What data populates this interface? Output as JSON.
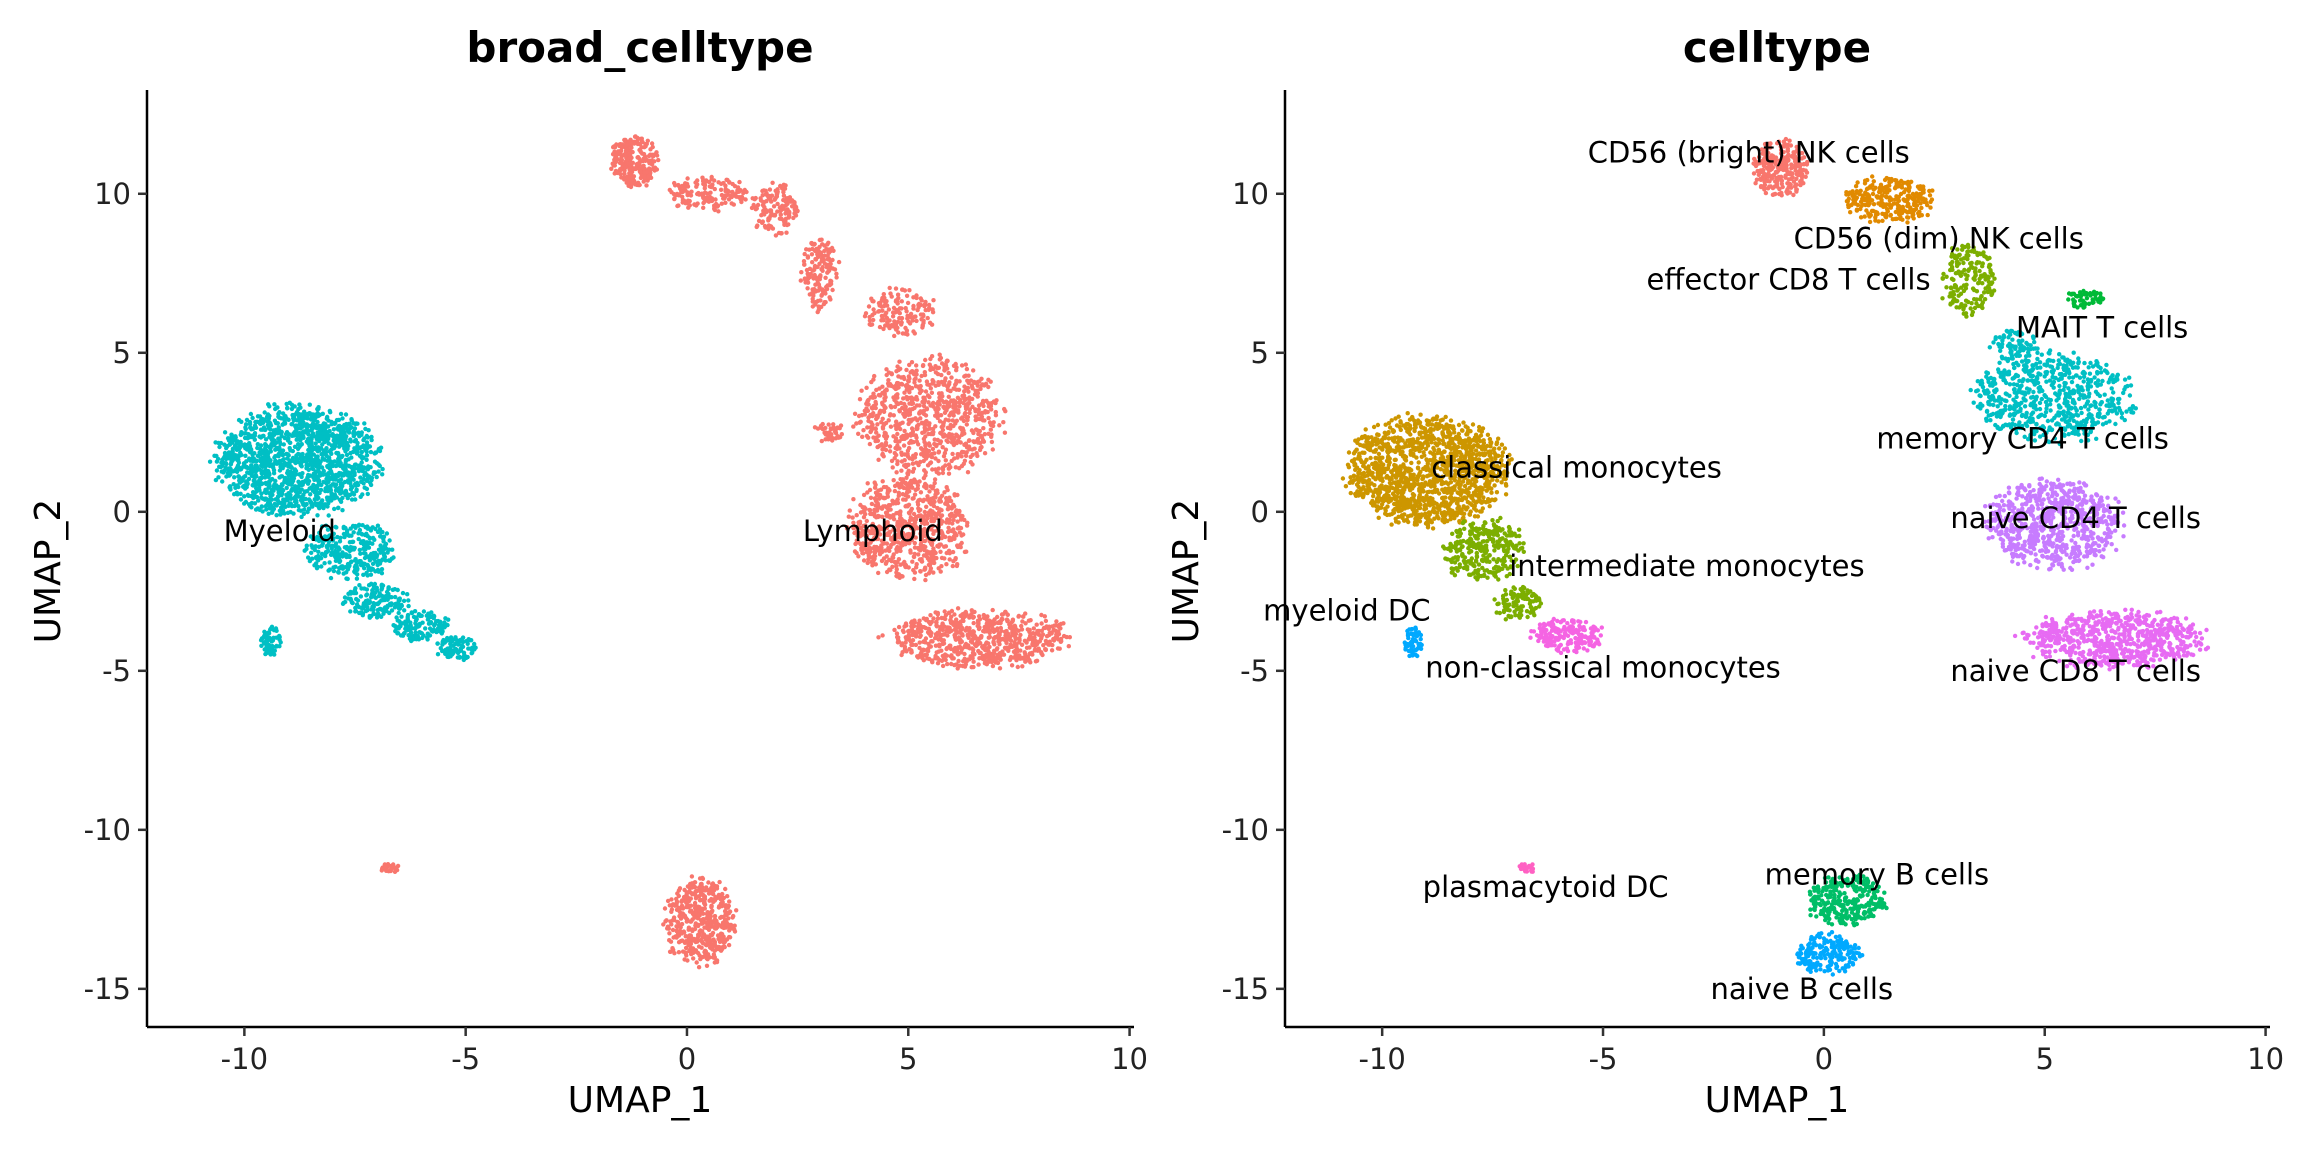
{
  "chart_data": [
    {
      "type": "scatter",
      "title": "broad_celltype",
      "xlabel": "UMAP_1",
      "ylabel": "UMAP_2",
      "xlim": [
        -12.2,
        10.1
      ],
      "ylim": [
        -16.2,
        13.2
      ],
      "xticks": [
        -10,
        -5,
        0,
        5,
        10
      ],
      "yticks": [
        -15,
        -10,
        -5,
        0,
        5,
        10
      ],
      "grid": false,
      "legend": "none",
      "clusters": [
        {
          "label": "Myeloid",
          "color": "#00BFC4",
          "label_pos": [
            -9.2,
            -0.6
          ],
          "blobs": [
            {
              "cx": -8.8,
              "cy": 1.6,
              "rx": 2.0,
              "ry": 1.9,
              "n": 1500
            },
            {
              "cx": -7.6,
              "cy": -1.2,
              "rx": 1.1,
              "ry": 1.0,
              "n": 300
            },
            {
              "cx": -7.0,
              "cy": -2.8,
              "rx": 0.8,
              "ry": 0.6,
              "n": 160
            },
            {
              "cx": -6.0,
              "cy": -3.6,
              "rx": 0.7,
              "ry": 0.5,
              "n": 140
            },
            {
              "cx": -5.2,
              "cy": -4.3,
              "rx": 0.5,
              "ry": 0.4,
              "n": 90
            },
            {
              "cx": -9.4,
              "cy": -4.1,
              "rx": 0.25,
              "ry": 0.5,
              "n": 60
            }
          ]
        },
        {
          "label": "Lymphoid",
          "color": "#F8766D",
          "label_pos": [
            4.2,
            -0.6
          ],
          "blobs": [
            {
              "cx": -1.2,
              "cy": 11.0,
              "rx": 0.6,
              "ry": 0.9,
              "n": 250
            },
            {
              "cx": 0.5,
              "cy": 10.0,
              "rx": 1.0,
              "ry": 0.6,
              "n": 160
            },
            {
              "cx": 2.0,
              "cy": 9.5,
              "rx": 0.6,
              "ry": 0.9,
              "n": 140
            },
            {
              "cx": 3.0,
              "cy": 7.5,
              "rx": 0.5,
              "ry": 1.3,
              "n": 150
            },
            {
              "cx": 4.8,
              "cy": 6.3,
              "rx": 0.9,
              "ry": 0.8,
              "n": 150
            },
            {
              "cx": 5.5,
              "cy": 3.0,
              "rx": 1.8,
              "ry": 2.0,
              "n": 800
            },
            {
              "cx": 5.0,
              "cy": -0.5,
              "rx": 1.5,
              "ry": 1.8,
              "n": 700
            },
            {
              "cx": 6.6,
              "cy": -4.0,
              "rx": 2.3,
              "ry": 1.0,
              "n": 700
            },
            {
              "cx": 3.2,
              "cy": 2.5,
              "rx": 0.4,
              "ry": 0.4,
              "n": 40
            },
            {
              "cx": 0.3,
              "cy": -12.9,
              "rx": 0.9,
              "ry": 1.5,
              "n": 450
            },
            {
              "cx": -6.7,
              "cy": -11.2,
              "rx": 0.25,
              "ry": 0.15,
              "n": 25
            }
          ]
        }
      ]
    },
    {
      "type": "scatter",
      "title": "celltype",
      "xlabel": "UMAP_1",
      "ylabel": "UMAP_2",
      "xlim": [
        -12.2,
        10.1
      ],
      "ylim": [
        -16.2,
        13.2
      ],
      "xticks": [
        -10,
        -5,
        0,
        5,
        10
      ],
      "yticks": [
        -15,
        -10,
        -5,
        0,
        5,
        10
      ],
      "grid": false,
      "legend": "none",
      "clusters": [
        {
          "label": "CD56 (bright) NK cells",
          "color": "#F8766D",
          "label_pos": [
            -1.7,
            11.3
          ],
          "blobs": [
            {
              "cx": -1.0,
              "cy": 10.8,
              "rx": 0.7,
              "ry": 1.0,
              "n": 260
            }
          ]
        },
        {
          "label": "CD56 (dim) NK cells",
          "color": "#E18A00",
          "label_pos": [
            2.6,
            8.6
          ],
          "blobs": [
            {
              "cx": 1.5,
              "cy": 9.8,
              "rx": 1.1,
              "ry": 0.8,
              "n": 280
            }
          ]
        },
        {
          "label": "effector CD8 T cells",
          "color": "#7CAE00",
          "label_pos": [
            -0.8,
            7.3
          ],
          "blobs": [
            {
              "cx": 3.3,
              "cy": 7.3,
              "rx": 0.7,
              "ry": 1.3,
              "n": 180
            }
          ]
        },
        {
          "label": "MAIT T cells",
          "color": "#00BA38",
          "label_pos": [
            6.3,
            5.8
          ],
          "blobs": [
            {
              "cx": 5.9,
              "cy": 6.7,
              "rx": 0.5,
              "ry": 0.3,
              "n": 60
            }
          ]
        },
        {
          "label": "memory CD4 T cells",
          "color": "#00BFC4",
          "label_pos": [
            4.5,
            2.3
          ],
          "blobs": [
            {
              "cx": 5.2,
              "cy": 3.6,
              "rx": 2.0,
              "ry": 1.5,
              "n": 650
            },
            {
              "cx": 4.3,
              "cy": 5.2,
              "rx": 0.6,
              "ry": 0.6,
              "n": 80
            }
          ]
        },
        {
          "label": "naive CD4 T cells",
          "color": "#C77CFF",
          "label_pos": [
            5.7,
            -0.2
          ],
          "blobs": [
            {
              "cx": 5.2,
              "cy": -0.4,
              "rx": 1.7,
              "ry": 1.6,
              "n": 700
            }
          ]
        },
        {
          "label": "naive CD8 T cells",
          "color": "#E76BF3",
          "label_pos": [
            5.7,
            -5.0
          ],
          "blobs": [
            {
              "cx": 6.6,
              "cy": -4.0,
              "rx": 2.3,
              "ry": 1.0,
              "n": 700
            }
          ]
        },
        {
          "label": "classical monocytes",
          "color": "#CD9600",
          "label_pos": [
            -5.6,
            1.4
          ],
          "blobs": [
            {
              "cx": -9.0,
              "cy": 1.3,
              "rx": 2.0,
              "ry": 1.9,
              "n": 1400
            }
          ]
        },
        {
          "label": "intermediate monocytes",
          "color": "#7CAE00",
          "label_pos": [
            -3.1,
            -1.7
          ],
          "blobs": [
            {
              "cx": -7.7,
              "cy": -1.2,
              "rx": 1.0,
              "ry": 1.1,
              "n": 300
            },
            {
              "cx": -6.9,
              "cy": -2.9,
              "rx": 0.6,
              "ry": 0.6,
              "n": 100
            }
          ]
        },
        {
          "label": "non-classical monocytes",
          "color": "#F564E3",
          "label_pos": [
            -5.0,
            -4.9
          ],
          "blobs": [
            {
              "cx": -5.8,
              "cy": -3.9,
              "rx": 0.9,
              "ry": 0.6,
              "n": 200
            }
          ]
        },
        {
          "label": "myeloid DC",
          "color": "#00A9FF",
          "label_pos": [
            -10.8,
            -3.1
          ],
          "blobs": [
            {
              "cx": -9.3,
              "cy": -4.1,
              "rx": 0.25,
              "ry": 0.5,
              "n": 60
            }
          ]
        },
        {
          "label": "plasmacytoid DC",
          "color": "#FF61C3",
          "label_pos": [
            -6.3,
            -11.8
          ],
          "blobs": [
            {
              "cx": -6.7,
              "cy": -11.2,
              "rx": 0.25,
              "ry": 0.15,
              "n": 25
            }
          ]
        },
        {
          "label": "memory B cells",
          "color": "#00BE67",
          "label_pos": [
            1.2,
            -11.4
          ],
          "blobs": [
            {
              "cx": 0.5,
              "cy": -12.2,
              "rx": 1.0,
              "ry": 0.9,
              "n": 280
            }
          ]
        },
        {
          "label": "naive B cells",
          "color": "#00A9FF",
          "label_pos": [
            -0.5,
            -15.0
          ],
          "blobs": [
            {
              "cx": 0.1,
              "cy": -13.9,
              "rx": 0.8,
              "ry": 0.7,
              "n": 200
            }
          ]
        }
      ]
    }
  ]
}
